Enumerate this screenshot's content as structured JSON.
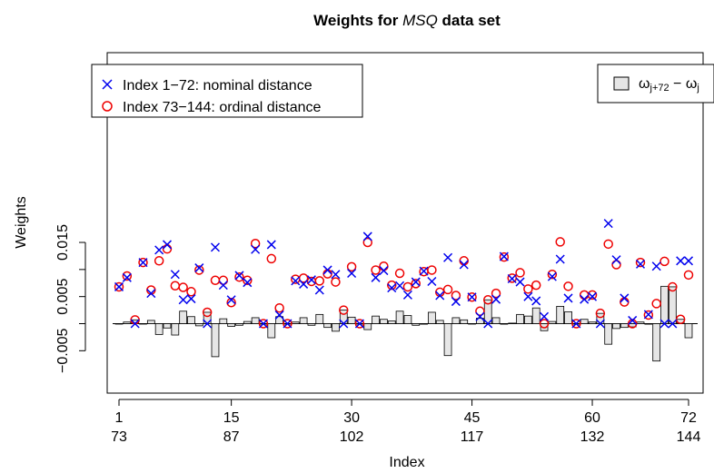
{
  "chart_data": {
    "type": "scatter",
    "title_prefix": "Weights for ",
    "title_italic": "MSQ",
    "title_suffix": " data set",
    "xlabel": "Index",
    "ylabel": "Weights",
    "xlim": [
      1,
      72
    ],
    "ylim": [
      -0.005,
      0.018
    ],
    "x_ticks": [
      1,
      15,
      30,
      45,
      60,
      72
    ],
    "x_ticks_secondary": [
      "73",
      "87",
      "102",
      "117",
      "132",
      "144"
    ],
    "y_ticks": [
      -0.005,
      0.005,
      0.015
    ],
    "y_tick_labels": [
      "−0.005",
      "0.005",
      "0.015"
    ],
    "legend": {
      "position": "top-left",
      "entries": [
        {
          "marker": "x",
          "color": "#0000ee",
          "label": "Index 1−72: nominal distance"
        },
        {
          "marker": "o",
          "color": "#ee0000",
          "label": "Index 73−144: ordinal distance"
        }
      ]
    },
    "legend_bar": {
      "position": "top-right",
      "label_main": "ω",
      "label_sub1": "j+72",
      "label_mid": " − ω",
      "label_sub2": "j",
      "fill": "#e6e6e6"
    },
    "series": [
      {
        "name": "Index 1−72: nominal distance",
        "marker": "x",
        "color": "#0000ee",
        "x": [
          1,
          2,
          3,
          4,
          5,
          6,
          7,
          8,
          9,
          10,
          11,
          12,
          13,
          14,
          15,
          16,
          17,
          18,
          19,
          20,
          21,
          22,
          23,
          24,
          25,
          26,
          27,
          28,
          29,
          30,
          31,
          32,
          33,
          34,
          35,
          36,
          37,
          38,
          39,
          40,
          41,
          42,
          43,
          44,
          45,
          46,
          47,
          48,
          49,
          50,
          51,
          52,
          53,
          54,
          55,
          56,
          57,
          58,
          59,
          60,
          61,
          62,
          63,
          64,
          65,
          66,
          67,
          68,
          69,
          70,
          71,
          72
        ],
        "y": [
          0.0068,
          0.0085,
          0.0,
          0.0113,
          0.0056,
          0.0136,
          0.0146,
          0.0091,
          0.0044,
          0.0046,
          0.0103,
          0.0,
          0.0141,
          0.0071,
          0.0044,
          0.0089,
          0.0076,
          0.0137,
          0.0,
          0.0146,
          0.0016,
          0.0,
          0.0079,
          0.0073,
          0.0081,
          0.0062,
          0.0099,
          0.0091,
          0.0,
          0.0093,
          0.0,
          0.0161,
          0.0085,
          0.0098,
          0.0066,
          0.007,
          0.0053,
          0.0077,
          0.0097,
          0.0078,
          0.0052,
          0.0122,
          0.0041,
          0.0109,
          0.0049,
          0.0013,
          0.0,
          0.0045,
          0.0124,
          0.0083,
          0.0077,
          0.005,
          0.0042,
          0.0013,
          0.0087,
          0.0119,
          0.0047,
          0.0,
          0.0045,
          0.005,
          0.0,
          0.0185,
          0.0118,
          0.0047,
          0.0006,
          0.011,
          0.0017,
          0.0106,
          0.0,
          0.0,
          0.0116,
          0.0116
        ]
      },
      {
        "name": "Index 73−144: ordinal distance",
        "marker": "o",
        "color": "#ee0000",
        "x": [
          1,
          2,
          3,
          4,
          5,
          6,
          7,
          8,
          9,
          10,
          11,
          12,
          13,
          14,
          15,
          16,
          17,
          18,
          19,
          20,
          21,
          22,
          23,
          24,
          25,
          26,
          27,
          28,
          29,
          30,
          31,
          32,
          33,
          34,
          35,
          36,
          37,
          38,
          39,
          40,
          41,
          42,
          43,
          44,
          45,
          46,
          47,
          48,
          49,
          50,
          51,
          52,
          53,
          54,
          55,
          56,
          57,
          58,
          59,
          60,
          61,
          62,
          63,
          64,
          65,
          66,
          67,
          68,
          69,
          70,
          71,
          72
        ],
        "y": [
          0.0068,
          0.0088,
          0.0007,
          0.0113,
          0.0062,
          0.0116,
          0.0138,
          0.007,
          0.0067,
          0.0059,
          0.0099,
          0.0021,
          0.008,
          0.008,
          0.0039,
          0.0086,
          0.008,
          0.0148,
          0.0,
          0.012,
          0.0029,
          0.0,
          0.0082,
          0.0084,
          0.0078,
          0.0079,
          0.0092,
          0.0077,
          0.0025,
          0.0105,
          0.0,
          0.015,
          0.0099,
          0.0106,
          0.0071,
          0.0093,
          0.0068,
          0.0074,
          0.0096,
          0.0099,
          0.0058,
          0.0063,
          0.0052,
          0.0116,
          0.0049,
          0.0023,
          0.0044,
          0.0056,
          0.0123,
          0.0084,
          0.0094,
          0.0064,
          0.0071,
          0.0,
          0.0091,
          0.0151,
          0.0069,
          0.0,
          0.0053,
          0.0053,
          0.0019,
          0.0147,
          0.0109,
          0.004,
          0.0,
          0.0113,
          0.0016,
          0.0037,
          0.0115,
          0.0068,
          0.0008,
          0.009
        ]
      }
    ],
    "bars": {
      "name": "ωj+72 − ωj",
      "x": [
        1,
        2,
        3,
        4,
        5,
        6,
        7,
        8,
        9,
        10,
        11,
        12,
        13,
        14,
        15,
        16,
        17,
        18,
        19,
        20,
        21,
        22,
        23,
        24,
        25,
        26,
        27,
        28,
        29,
        30,
        31,
        32,
        33,
        34,
        35,
        36,
        37,
        38,
        39,
        40,
        41,
        42,
        43,
        44,
        45,
        46,
        47,
        48,
        49,
        50,
        51,
        52,
        53,
        54,
        55,
        56,
        57,
        58,
        59,
        60,
        61,
        62,
        63,
        64,
        65,
        66,
        67,
        68,
        69,
        70,
        71,
        72
      ],
      "values": [
        0.0,
        0.0003,
        0.0007,
        0.0,
        0.0006,
        -0.002,
        -0.0008,
        -0.0021,
        0.0023,
        0.0013,
        -0.0004,
        0.0021,
        -0.0061,
        0.0009,
        -0.0005,
        -0.0003,
        0.0004,
        0.0011,
        0.0,
        -0.0026,
        0.0013,
        0.0,
        0.0003,
        0.0011,
        -0.0003,
        0.0017,
        -0.0007,
        -0.0014,
        0.0025,
        0.0012,
        0.0,
        -0.0011,
        0.0014,
        0.0008,
        0.0005,
        0.0023,
        0.0015,
        -0.0003,
        -0.0001,
        0.0021,
        0.0006,
        -0.0059,
        0.0011,
        0.0007,
        0.0,
        0.001,
        0.0044,
        0.0011,
        -0.0001,
        0.0001,
        0.0017,
        0.0014,
        0.0029,
        -0.0013,
        0.0004,
        0.0032,
        0.0022,
        0.0,
        0.0008,
        0.0003,
        0.0019,
        -0.0038,
        -0.0009,
        -0.0007,
        -0.0006,
        0.0003,
        -0.0001,
        -0.0069,
        0.0069,
        0.0068,
        0.0008,
        -0.0026
      ]
    }
  }
}
